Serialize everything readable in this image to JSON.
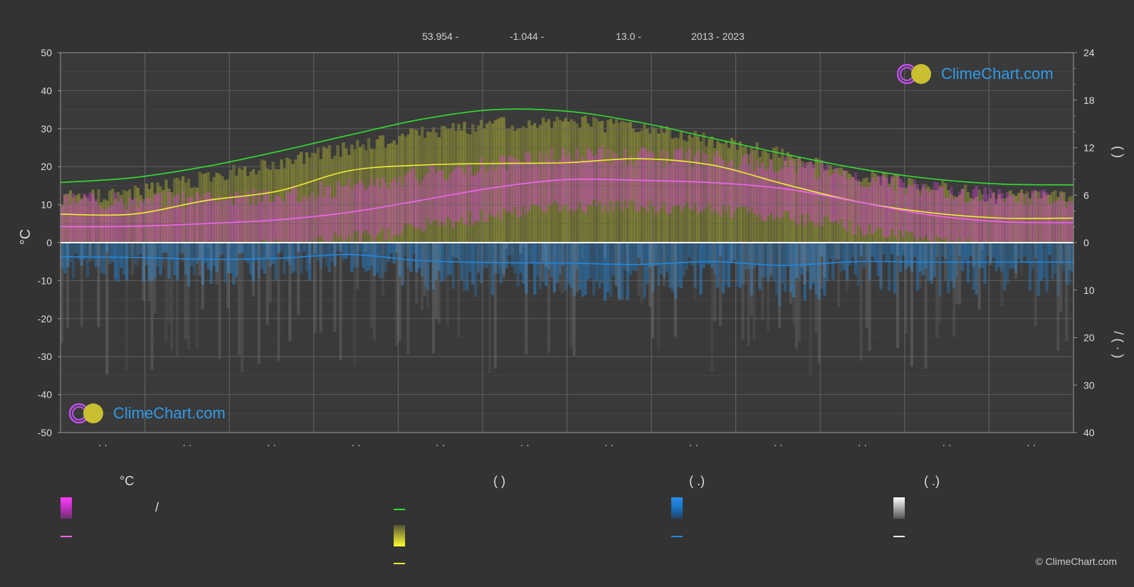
{
  "header": {
    "lat": "53.954 -",
    "lon": "-1.044 -",
    "elev": "13.0 -",
    "years": "2013 - 2023"
  },
  "logo_text": "ClimeChart.com",
  "copyright": "© ClimeChart.com",
  "legend": {
    "col1_title": "°C",
    "col1_slash": "/",
    "col2_paren": "(          )",
    "col3_paren": "(    .)",
    "col4_paren": "(    .)"
  },
  "colors": {
    "background": "#333333",
    "daylight": "#33dd33",
    "sunshine": "#eeee33",
    "temp_mean": "#ee66ee",
    "temp_band": "#e040e0",
    "precip": "#2288dd",
    "snow": "#cccccc"
  },
  "chart_data": {
    "type": "area",
    "months": 12,
    "left_axis": {
      "label": "°C",
      "range": [
        -50,
        50
      ],
      "ticks": [
        "50",
        "40",
        "30",
        "20",
        "10",
        "0",
        "-10",
        "-20",
        "-30",
        "-40",
        "-50"
      ]
    },
    "right_axis_top": {
      "label": "(   )",
      "range": [
        0,
        24
      ],
      "ticks": [
        "24",
        "18",
        "12",
        "6",
        "0"
      ]
    },
    "right_axis_bottom": {
      "label": "/   (  ·  )",
      "range": [
        0,
        40
      ],
      "ticks": [
        "0",
        "10",
        "20",
        "30",
        "40"
      ]
    },
    "x_tick_labels": [
      "· ·",
      "· ·",
      "· ·",
      "· ·",
      "· ·",
      "· ·",
      "· ·",
      "· ·",
      "· ·",
      "· ·",
      "· ·",
      "· ·"
    ],
    "series": [
      {
        "name": "daylight",
        "axis": "hours",
        "values": [
          7.6,
          8.2,
          9.6,
          11.5,
          13.6,
          15.6,
          16.8,
          16.6,
          15.2,
          13.2,
          11.2,
          9.4,
          8.1,
          7.4,
          7.3
        ]
      },
      {
        "name": "sunshine_avg_top",
        "axis": "celsius",
        "values": [
          12,
          13,
          17,
          21,
          25,
          29,
          31,
          32,
          30,
          27,
          23,
          18,
          15,
          12,
          12
        ]
      },
      {
        "name": "sunshine",
        "axis": "hours",
        "values": [
          3.6,
          3.6,
          5.3,
          6.5,
          9.1,
          9.8,
          10.0,
          10.1,
          10.6,
          9.8,
          7.4,
          5.2,
          3.8,
          3.1,
          3.1
        ]
      },
      {
        "name": "temp_mean",
        "axis": "celsius",
        "values": [
          4.2,
          4.3,
          5.0,
          6.0,
          8.0,
          11.2,
          14.5,
          16.6,
          16.4,
          15.8,
          14.2,
          10.8,
          7.3,
          5.5,
          5.2
        ]
      },
      {
        "name": "precip_mean",
        "axis": "precip",
        "values": [
          3.0,
          3.1,
          3.5,
          3.3,
          2.5,
          3.8,
          4.2,
          4.3,
          4.6,
          4.0,
          4.8,
          4.0,
          4.1,
          4.1,
          4.1
        ]
      }
    ]
  }
}
